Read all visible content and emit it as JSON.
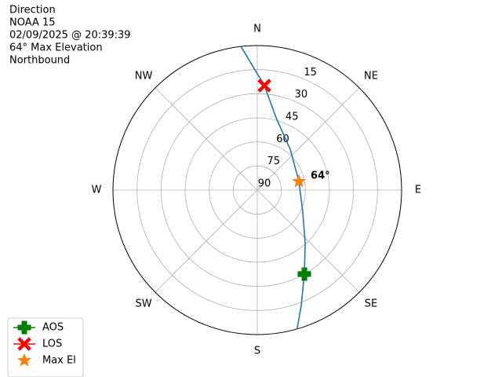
{
  "chart_data": {
    "type": "polar",
    "title_lines": [
      "Direction",
      "NOAA 15",
      "02/09/2025 @ 20:39:39",
      "64° Max Elevation",
      "Northbound"
    ],
    "directions": [
      "N",
      "NE",
      "E",
      "SE",
      "S",
      "SW",
      "W",
      "NW"
    ],
    "rlim": [
      90,
      0
    ],
    "rticks": [
      15,
      30,
      45,
      60,
      75,
      90
    ],
    "grid": true,
    "track": {
      "color": "#1f77b4",
      "azimuth": [
        164,
        159.3,
        150.7,
        138,
        115.8,
        78.3,
        38.9,
        14.6,
        3.9,
        353.5
      ],
      "elevation": [
        0,
        12.6,
        30,
        45.3,
        58.5,
        63.5,
        57.3,
        43.5,
        24.8,
        0
      ]
    },
    "series": [
      {
        "name": "AOS",
        "color": "#008000",
        "marker": "plus",
        "azimuth": 150.7,
        "elevation": 30
      },
      {
        "name": "LOS",
        "color": "#ff0000",
        "marker": "x",
        "azimuth": 3.9,
        "elevation": 24.8
      },
      {
        "name": "Max El",
        "color": "#ff7f0e",
        "marker": "star",
        "azimuth": 78.3,
        "elevation": 63.5
      }
    ],
    "annotation": "64°",
    "legend": "lower left"
  }
}
